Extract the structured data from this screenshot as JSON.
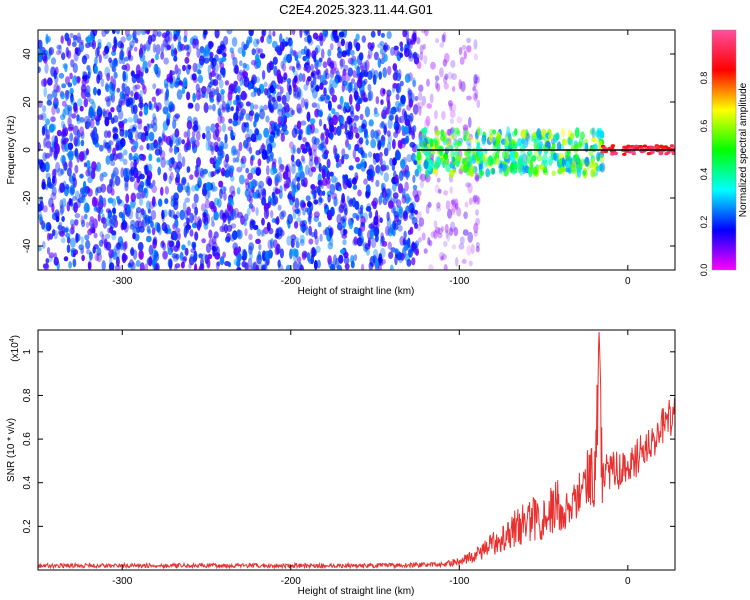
{
  "title": "C2E4.2025.323.11.44.G01",
  "colors": {
    "snr_line": "#e8302f",
    "track_line": "#000000",
    "spectrogram_dot": "#6a1cf0"
  },
  "chart_data": [
    {
      "type": "heatmap",
      "name": "spectrogram",
      "xlabel": "Height of straight line (km)",
      "ylabel": "Frequency (Hz)",
      "xlim": [
        -350,
        28
      ],
      "ylim": [
        -50,
        50
      ],
      "xticks": [
        "-300",
        "-200",
        "-100",
        "0"
      ],
      "yticks": [
        "40",
        "20",
        "0",
        "-20",
        "-40"
      ],
      "grid": false,
      "colorbar": {
        "label": "Normalized spectral amplitude",
        "range": [
          0,
          1
        ],
        "ticks": [
          "0.0",
          "0.2",
          "0.4",
          "0.6",
          "0.8"
        ],
        "colormap": [
          "#ff00ff",
          "#0000ff",
          "#00ffff",
          "#00ff00",
          "#ffff00",
          "#ff0000",
          "#ff4fa0"
        ]
      },
      "track": {
        "x": [
          -125,
          28
        ],
        "y": 0,
        "description_visible": false
      },
      "regions": [
        {
          "x": [
            -350,
            -125
          ],
          "y": [
            -50,
            50
          ],
          "amplitude": 0.18,
          "density": "dense"
        },
        {
          "x": [
            -125,
            -88
          ],
          "y": [
            -50,
            50
          ],
          "amplitude": 0.08,
          "density": "sparse"
        },
        {
          "x": [
            -125,
            -15
          ],
          "y": [
            -10,
            8
          ],
          "amplitude": 0.45,
          "density": "dense"
        },
        {
          "x": [
            -15,
            28
          ],
          "y": [
            -3,
            3
          ],
          "amplitude": 0.95,
          "density": "line"
        }
      ]
    },
    {
      "type": "line",
      "name": "snr",
      "xlabel": "Height of straight line (km)",
      "ylabel": "SNR (10 * v/v)",
      "scale_label": "(x10",
      "scale_exponent": "4",
      "scale_suffix": ")",
      "xlim": [
        -350,
        28
      ],
      "ylim": [
        0,
        1.1
      ],
      "xticks": [
        "-300",
        "-200",
        "-100",
        "0"
      ],
      "yticks": [
        "0.2",
        "0.4",
        "0.6",
        "0.8",
        "1"
      ],
      "grid": false,
      "series": [
        {
          "x": [
            -350,
            -300,
            -250,
            -200,
            -150,
            -110,
            -100,
            -90,
            -80,
            -70,
            -60,
            -50,
            -40,
            -30,
            -25,
            -20,
            -17,
            -15,
            -10,
            0,
            10,
            20,
            28
          ],
          "y": [
            0.02,
            0.02,
            0.02,
            0.02,
            0.02,
            0.025,
            0.04,
            0.07,
            0.12,
            0.18,
            0.22,
            0.25,
            0.3,
            0.38,
            0.55,
            0.5,
            1.1,
            0.5,
            0.48,
            0.5,
            0.58,
            0.68,
            0.75
          ],
          "color": "#e8302f"
        }
      ]
    }
  ]
}
